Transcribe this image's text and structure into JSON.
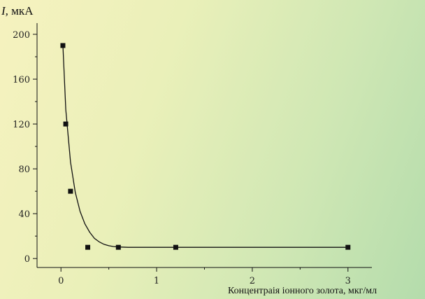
{
  "chart_data": {
    "type": "scatter",
    "title": "",
    "xlabel": "Концентраія іонного золота, мкг/мл",
    "ylabel_var": "I,",
    "ylabel_unit": " мкА",
    "xlim": [
      -0.25,
      3.25
    ],
    "ylim": [
      -8,
      210
    ],
    "xticks": [
      0,
      1,
      2,
      3
    ],
    "yticks": [
      0,
      40,
      80,
      120,
      160,
      200
    ],
    "grid": false,
    "legend": "none",
    "series": [
      {
        "x": [
          0.02,
          0.05,
          0.1,
          0.28,
          0.6,
          1.2,
          3.0
        ],
        "y": [
          190,
          120,
          60,
          10,
          10,
          10,
          10
        ]
      }
    ],
    "fit_curve": {
      "x": [
        0.02,
        0.05,
        0.1,
        0.15,
        0.2,
        0.25,
        0.3,
        0.35,
        0.4,
        0.45,
        0.5,
        0.55,
        0.6,
        0.7,
        1.0,
        1.5,
        2.0,
        2.5,
        3.0
      ],
      "y": [
        190,
        133,
        86,
        59,
        42,
        31,
        23.5,
        18,
        14.8,
        12.7,
        11.4,
        10.7,
        10.3,
        10,
        10,
        10,
        10,
        10,
        10
      ]
    }
  }
}
